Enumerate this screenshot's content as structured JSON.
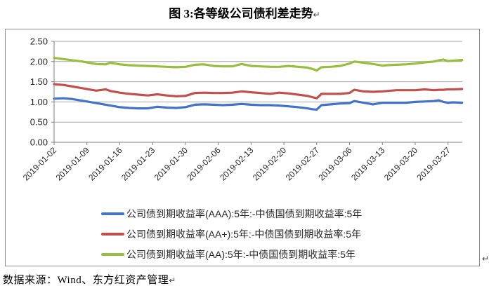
{
  "title": "图 3:各等级公司债利差走势",
  "return_mark": "↵",
  "footer": "数据来源：Wind、东方红资产管理",
  "colors": {
    "aaa_line": "#4273C8",
    "aa_plus_line": "#C0504D",
    "aa_line": "#97BE3F",
    "gridline": "#A6A6A6",
    "axis": "#808080",
    "tick_text": "#262626",
    "frame_border": "#8C8C8C"
  },
  "chart_data": {
    "type": "line",
    "title": "图 3:各等级公司债利差走势",
    "xlabel": "",
    "ylabel": "",
    "ylim": [
      0,
      2.5
    ],
    "grid": "horizontal",
    "legend_position": "bottom-left",
    "y_ticks": [
      "0.00",
      "0.50",
      "1.00",
      "1.50",
      "2.00",
      "2.50"
    ],
    "x_tick_labels": [
      "2019-01-02",
      "2019-01-09",
      "2019-01-16",
      "2019-01-23",
      "2019-01-30",
      "2019-02-06",
      "2019-02-13",
      "2019-02-20",
      "2019-02-27",
      "2019-03-06",
      "2019-03-13",
      "2019-03-20",
      "2019-03-27"
    ],
    "x_tick_days": [
      0,
      7,
      14,
      21,
      28,
      35,
      42,
      49,
      56,
      63,
      70,
      77,
      84
    ],
    "x_max_day": 87,
    "days": [
      0,
      2,
      4,
      6,
      7,
      9,
      11,
      12,
      14,
      16,
      18,
      20,
      22,
      24,
      26,
      28,
      30,
      32,
      34,
      36,
      38,
      40,
      42,
      44,
      46,
      48,
      50,
      52,
      54,
      55,
      56,
      57,
      59,
      61,
      63,
      64,
      66,
      68,
      70,
      71,
      73,
      75,
      77,
      79,
      81,
      82,
      83,
      84,
      85,
      87
    ],
    "series": [
      {
        "key": "aaa",
        "name": "公司债到期收益率(AAA):5年:-中债国债到期收益率:5年",
        "color": "#4273C8",
        "values": [
          1.08,
          1.09,
          1.07,
          1.03,
          1.01,
          0.97,
          0.93,
          0.91,
          0.87,
          0.85,
          0.84,
          0.84,
          0.88,
          0.86,
          0.85,
          0.87,
          0.93,
          0.94,
          0.93,
          0.92,
          0.93,
          0.95,
          0.93,
          0.92,
          0.92,
          0.91,
          0.89,
          0.87,
          0.84,
          0.82,
          0.81,
          0.92,
          0.94,
          0.96,
          0.97,
          1.02,
          0.98,
          0.94,
          0.98,
          0.98,
          0.98,
          0.98,
          1.0,
          1.01,
          1.02,
          1.04,
          1.0,
          0.98,
          0.99,
          0.98
        ]
      },
      {
        "key": "aa-plus",
        "name": "公司债到期收益率(AA+):5年:-中债国债到期收益率:5年",
        "color": "#C0504D",
        "values": [
          1.44,
          1.42,
          1.38,
          1.34,
          1.32,
          1.28,
          1.31,
          1.27,
          1.23,
          1.2,
          1.18,
          1.16,
          1.19,
          1.16,
          1.14,
          1.15,
          1.22,
          1.23,
          1.22,
          1.22,
          1.23,
          1.26,
          1.24,
          1.22,
          1.2,
          1.23,
          1.21,
          1.18,
          1.15,
          1.12,
          1.09,
          1.2,
          1.2,
          1.2,
          1.22,
          1.3,
          1.26,
          1.25,
          1.26,
          1.27,
          1.29,
          1.29,
          1.29,
          1.31,
          1.29,
          1.3,
          1.3,
          1.31,
          1.31,
          1.32
        ]
      },
      {
        "key": "aa",
        "name": "公司债到期收益率(AA):5年:-中债国债到期收益率:5年",
        "color": "#97BE3F",
        "values": [
          2.09,
          2.06,
          2.03,
          2.0,
          1.98,
          1.94,
          1.93,
          1.97,
          1.93,
          1.91,
          1.9,
          1.89,
          1.88,
          1.87,
          1.86,
          1.87,
          1.92,
          1.93,
          1.89,
          1.88,
          1.88,
          1.94,
          1.89,
          1.88,
          1.87,
          1.87,
          1.89,
          1.87,
          1.85,
          1.82,
          1.78,
          1.86,
          1.87,
          1.89,
          1.95,
          2.0,
          1.97,
          1.94,
          1.9,
          1.91,
          1.92,
          1.93,
          1.95,
          1.98,
          2.0,
          2.03,
          2.05,
          2.01,
          2.02,
          2.04
        ]
      }
    ]
  }
}
